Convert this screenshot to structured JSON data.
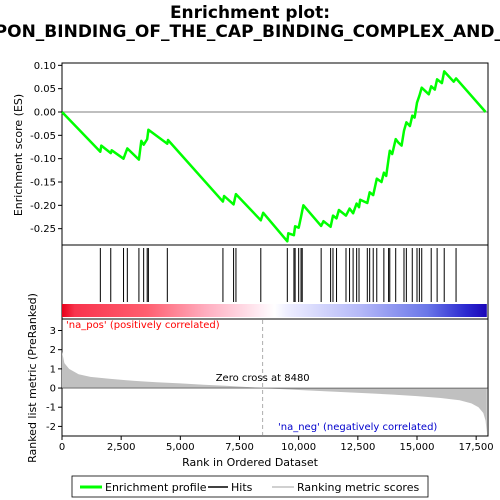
{
  "chart_data": {
    "type": "line",
    "title_line1": "Enrichment plot:",
    "title_line2": "REACTOME_ACTIVATION_OF_THE_MRNA_UPON_BINDING_OF_THE_CAP_BINDING_COMPLEX_AND_EIFS_AND_SUBSEQUENT_BINDING_TO_43S",
    "xlabel": "Rank in Ordered Dataset",
    "ylabel_top": "Enrichment score (ES)",
    "ylabel_bottom": "Ranked list metric (PreRanked)",
    "x_ticks": [
      0,
      2500,
      5000,
      7500,
      10000,
      12500,
      15000,
      17500
    ],
    "x_tick_labels": [
      "0",
      "2,500",
      "5,000",
      "7,500",
      "10,000",
      "12,500",
      "15,000",
      "17,500"
    ],
    "xlim": [
      0,
      18000
    ],
    "es_ylim": [
      -0.285,
      0.105
    ],
    "es_ticks": [
      0.1,
      0.05,
      0.0,
      -0.05,
      -0.1,
      -0.15,
      -0.2,
      -0.25
    ],
    "es_tick_labels": [
      "0.10",
      "0.05",
      "0.00",
      "-0.05",
      "-0.10",
      "-0.15",
      "-0.20",
      "-0.25"
    ],
    "metric_ylim": [
      -2.5,
      3.6
    ],
    "metric_ticks": [
      3,
      2,
      1,
      0,
      -1,
      -2
    ],
    "metric_tick_labels": [
      "3",
      "2",
      "1",
      "0",
      "-1",
      "-2"
    ],
    "zero_cross": 8480,
    "zero_cross_label": "Zero cross at 8480",
    "pos_label": "'na_pos' (positively correlated)",
    "neg_label": "'na_neg' (negatively correlated)",
    "legend": [
      "Enrichment profile",
      "Hits",
      "Ranking metric scores"
    ],
    "colors": {
      "profile": "#00ff00",
      "hits": "#000000",
      "metric": "#c0c0c0",
      "pos": "#ff0000",
      "neg": "#0000ff",
      "pos_label": "#ff0000",
      "neg_label": "#0000cc"
    },
    "es_profile": [
      [
        0,
        0.0
      ],
      [
        1620,
        -0.085
      ],
      [
        1660,
        -0.072
      ],
      [
        2060,
        -0.088
      ],
      [
        2100,
        -0.082
      ],
      [
        2600,
        -0.1
      ],
      [
        2760,
        -0.078
      ],
      [
        3250,
        -0.102
      ],
      [
        3350,
        -0.062
      ],
      [
        3450,
        -0.07
      ],
      [
        3600,
        -0.058
      ],
      [
        3650,
        -0.038
      ],
      [
        4450,
        -0.068
      ],
      [
        4480,
        -0.06
      ],
      [
        6800,
        -0.192
      ],
      [
        6850,
        -0.18
      ],
      [
        7250,
        -0.198
      ],
      [
        7350,
        -0.176
      ],
      [
        8400,
        -0.232
      ],
      [
        8500,
        -0.216
      ],
      [
        9520,
        -0.277
      ],
      [
        9560,
        -0.26
      ],
      [
        9800,
        -0.264
      ],
      [
        9850,
        -0.245
      ],
      [
        10000,
        -0.248
      ],
      [
        10100,
        -0.225
      ],
      [
        10150,
        -0.212
      ],
      [
        10200,
        -0.2
      ],
      [
        10950,
        -0.244
      ],
      [
        11050,
        -0.234
      ],
      [
        11350,
        -0.246
      ],
      [
        11450,
        -0.222
      ],
      [
        11600,
        -0.228
      ],
      [
        11700,
        -0.21
      ],
      [
        12000,
        -0.222
      ],
      [
        12150,
        -0.207
      ],
      [
        12300,
        -0.217
      ],
      [
        12450,
        -0.196
      ],
      [
        12550,
        -0.204
      ],
      [
        12600,
        -0.188
      ],
      [
        12900,
        -0.195
      ],
      [
        13000,
        -0.172
      ],
      [
        13150,
        -0.178
      ],
      [
        13300,
        -0.143
      ],
      [
        13500,
        -0.15
      ],
      [
        13600,
        -0.13
      ],
      [
        13700,
        -0.137
      ],
      [
        13800,
        -0.1
      ],
      [
        13850,
        -0.083
      ],
      [
        13950,
        -0.09
      ],
      [
        14100,
        -0.058
      ],
      [
        14200,
        -0.065
      ],
      [
        14350,
        -0.072
      ],
      [
        14450,
        -0.04
      ],
      [
        14550,
        -0.022
      ],
      [
        14700,
        -0.03
      ],
      [
        14800,
        -0.008
      ],
      [
        14900,
        -0.012
      ],
      [
        15000,
        0.02
      ],
      [
        15100,
        0.035
      ],
      [
        15200,
        0.052
      ],
      [
        15500,
        0.038
      ],
      [
        15600,
        0.055
      ],
      [
        15750,
        0.048
      ],
      [
        15850,
        0.07
      ],
      [
        16050,
        0.062
      ],
      [
        16150,
        0.087
      ],
      [
        16550,
        0.065
      ],
      [
        16650,
        0.072
      ],
      [
        17900,
        0.0
      ]
    ],
    "hits": [
      1620,
      2060,
      2600,
      2760,
      3250,
      3450,
      3600,
      3650,
      4450,
      6800,
      7250,
      7350,
      8400,
      9520,
      9800,
      9850,
      10000,
      10100,
      10150,
      10950,
      11350,
      11450,
      11600,
      12000,
      12150,
      12300,
      12450,
      12550,
      12900,
      13000,
      13150,
      13300,
      13600,
      13800,
      13850,
      14100,
      14450,
      14550,
      14800,
      15000,
      15100,
      15200,
      15600,
      15850,
      16150,
      16650
    ],
    "metric_curve": [
      [
        0,
        1.9
      ],
      [
        100,
        1.3
      ],
      [
        300,
        1.0
      ],
      [
        700,
        0.72
      ],
      [
        1200,
        0.58
      ],
      [
        2000,
        0.48
      ],
      [
        3000,
        0.38
      ],
      [
        4000,
        0.3
      ],
      [
        5000,
        0.24
      ],
      [
        6000,
        0.17
      ],
      [
        7000,
        0.11
      ],
      [
        8000,
        0.04
      ],
      [
        8480,
        0.0
      ],
      [
        9000,
        -0.04
      ],
      [
        10000,
        -0.1
      ],
      [
        11000,
        -0.16
      ],
      [
        12000,
        -0.22
      ],
      [
        13000,
        -0.28
      ],
      [
        14000,
        -0.34
      ],
      [
        15000,
        -0.42
      ],
      [
        16000,
        -0.52
      ],
      [
        16800,
        -0.64
      ],
      [
        17300,
        -0.8
      ],
      [
        17600,
        -1.0
      ],
      [
        17800,
        -1.3
      ],
      [
        17900,
        -1.7
      ],
      [
        17950,
        -2.35
      ]
    ]
  }
}
